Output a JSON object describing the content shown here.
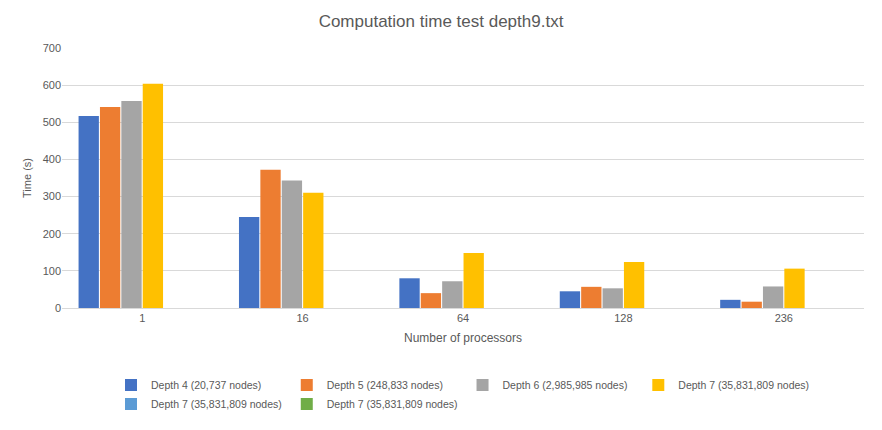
{
  "chart_data": {
    "type": "bar",
    "title": "Computation time test depth9.txt",
    "x_label": "Number of processors",
    "y_label": "Time (s)",
    "categories": [
      "1",
      "16",
      "64",
      "128",
      "236"
    ],
    "series": [
      {
        "name": "Depth 4 (20,737 nodes)",
        "color": "#4472c4",
        "values": [
          517,
          245,
          80,
          45,
          22
        ]
      },
      {
        "name": "Depth 5 (248,833 nodes)",
        "color": "#ed7d31",
        "values": [
          541,
          372,
          40,
          57,
          17
        ]
      },
      {
        "name": "Depth 6 (2,985,985 nodes)",
        "color": "#a5a5a5",
        "values": [
          557,
          343,
          72,
          53,
          58
        ]
      },
      {
        "name": "Depth 7 (35,831,809 nodes)",
        "color": "#ffc000",
        "values": [
          604,
          310,
          148,
          124,
          106
        ]
      },
      {
        "name": "Depth 7 (35,831,809 nodes)",
        "color": "#5b9bd5",
        "values": [
          null,
          null,
          null,
          null,
          null
        ]
      },
      {
        "name": "Depth 7 (35,831,809 nodes)",
        "color": "#70ad47",
        "values": [
          null,
          null,
          null,
          null,
          null
        ]
      }
    ],
    "ylim": [
      0,
      700
    ],
    "yticks": [
      0,
      100,
      200,
      300,
      400,
      500,
      600,
      700
    ],
    "grid": true,
    "legend": "bottom"
  }
}
